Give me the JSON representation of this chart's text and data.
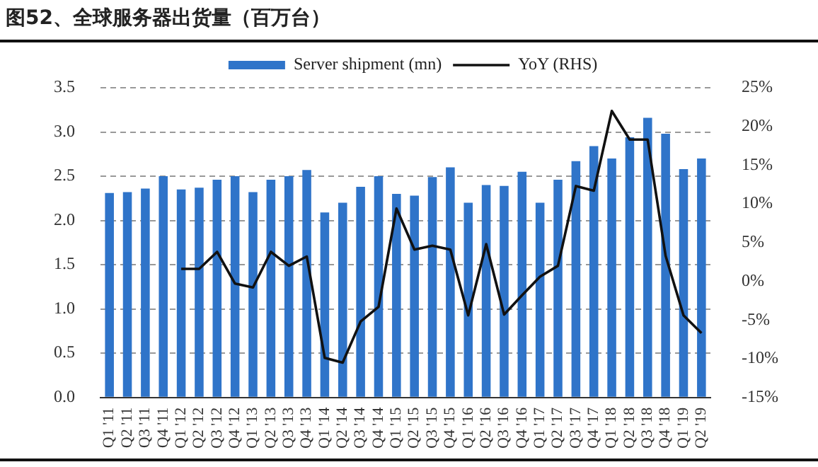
{
  "chart_data": {
    "type": "bar",
    "title": "图52、全球服务器出货量（百万台）",
    "categories": [
      "Q1 '11",
      "Q2 '11",
      "Q3 '11",
      "Q4 '11",
      "Q1 '12",
      "Q2 '12",
      "Q3 '12",
      "Q4 '12",
      "Q1 '13",
      "Q2 '13",
      "Q3 '13",
      "Q4 '13",
      "Q1 '14",
      "Q2 '14",
      "Q3 '14",
      "Q4 '14",
      "Q1 '15",
      "Q2 '15",
      "Q3 '15",
      "Q4 '15",
      "Q1 '16",
      "Q2 '16",
      "Q3 '16",
      "Q4 '16",
      "Q1 '17",
      "Q2 '17",
      "Q3 '17",
      "Q4 '17",
      "Q1 '18",
      "Q2 '18",
      "Q3 '18",
      "Q4 '18",
      "Q1 '19",
      "Q2 '19"
    ],
    "series": [
      {
        "name": "Server shipment (mn)",
        "color": "#2f74c9",
        "values": [
          2.31,
          2.32,
          2.36,
          2.5,
          2.35,
          2.37,
          2.46,
          2.5,
          2.32,
          2.46,
          2.5,
          2.57,
          2.09,
          2.2,
          2.38,
          2.5,
          2.3,
          2.28,
          2.49,
          2.6,
          2.2,
          2.4,
          2.39,
          2.55,
          2.2,
          2.46,
          2.67,
          2.84,
          2.7,
          2.94,
          3.16,
          2.98,
          2.58,
          2.7
        ]
      },
      {
        "name": "YoY (RHS)",
        "type": "line",
        "axis": "y2",
        "color": "#111111",
        "values": [
          null,
          null,
          null,
          null,
          1.6,
          1.6,
          3.8,
          -0.3,
          -0.8,
          3.8,
          2.0,
          3.2,
          -9.9,
          -10.5,
          -5.2,
          -3.3,
          9.4,
          4.1,
          4.6,
          4.1,
          -4.4,
          4.8,
          -4.3,
          -1.8,
          0.6,
          2.0,
          12.3,
          11.7,
          22.0,
          18.3,
          18.3,
          3.3,
          -4.4,
          -6.7
        ]
      }
    ],
    "ylim": [
      0,
      3.5
    ],
    "yticks": [
      {
        "value": 0,
        "label": "0.0"
      },
      0.5,
      {
        "value": 1,
        "label": "1.0"
      },
      1.5,
      {
        "value": 2,
        "label": "2.0"
      },
      2.5,
      {
        "value": 3,
        "label": "3.0"
      },
      3.5
    ],
    "y2lim": [
      -15,
      25
    ],
    "y2ticks": [
      {
        "value": -15,
        "label": "-15%"
      },
      {
        "value": -10,
        "label": "-10%"
      },
      {
        "value": -5,
        "label": "-5%"
      },
      {
        "value": 0,
        "label": "0%"
      },
      {
        "value": 5,
        "label": "5%"
      },
      {
        "value": 10,
        "label": "10%"
      },
      {
        "value": 15,
        "label": "15%"
      },
      {
        "value": 20,
        "label": "20%"
      },
      {
        "value": 25,
        "label": "25%"
      }
    ],
    "grid": "y",
    "legend": "top",
    "marker": "none",
    "line_style": "solid"
  }
}
